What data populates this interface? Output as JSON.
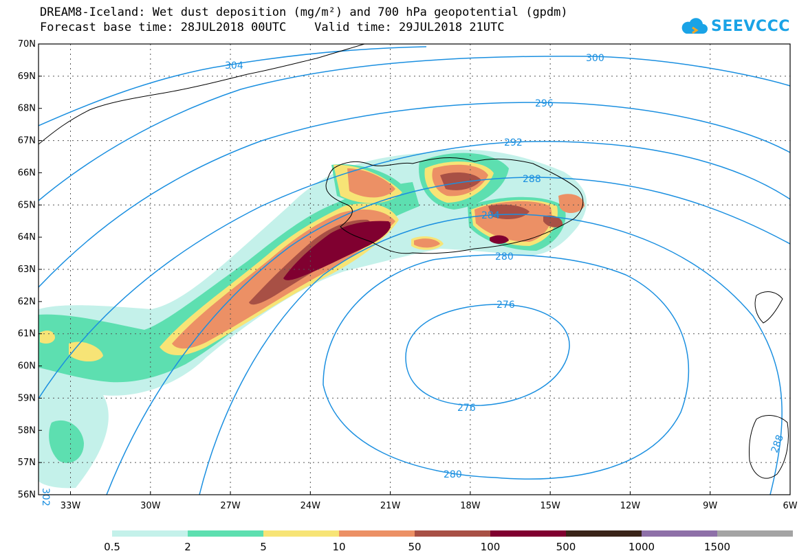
{
  "title": {
    "line1": "DREAM8-Iceland: Wet dust deposition (mg/m²) and 700 hPa geopotential (gpdm)",
    "line2": "Forecast base time: 28JUL2018 00UTC    Valid time: 29JUL2018 21UTC"
  },
  "logo": {
    "text": "SEEVCCC",
    "icon": "cloud-icon",
    "color": "#1aa3e6"
  },
  "map": {
    "lat_labels": [
      "70N",
      "69N",
      "68N",
      "67N",
      "66N",
      "65N",
      "64N",
      "63N",
      "62N",
      "61N",
      "60N",
      "59N",
      "58N",
      "57N",
      "56N"
    ],
    "lon_labels": [
      "33W",
      "30W",
      "27W",
      "24W",
      "21W",
      "18W",
      "15W",
      "12W",
      "9W",
      "6W"
    ],
    "lat_range": [
      56,
      70
    ],
    "lon_range": [
      -34.2,
      -6
    ],
    "grid": "dotted",
    "contour_color": "#1a8fe0",
    "contour_labels": [
      "304",
      "300",
      "296",
      "292",
      "288",
      "284",
      "280",
      "276",
      "276",
      "280",
      "302",
      "288"
    ]
  },
  "colorbar": {
    "colors": [
      "#c4f1ea",
      "#5ddfb0",
      "#f7e476",
      "#ec9065",
      "#a85045",
      "#800030",
      "#3a2418",
      "#8e70a8",
      "#a4a4a4"
    ],
    "labels": [
      "0.5",
      "2",
      "5",
      "10",
      "50",
      "100",
      "500",
      "1000",
      "1500"
    ]
  }
}
